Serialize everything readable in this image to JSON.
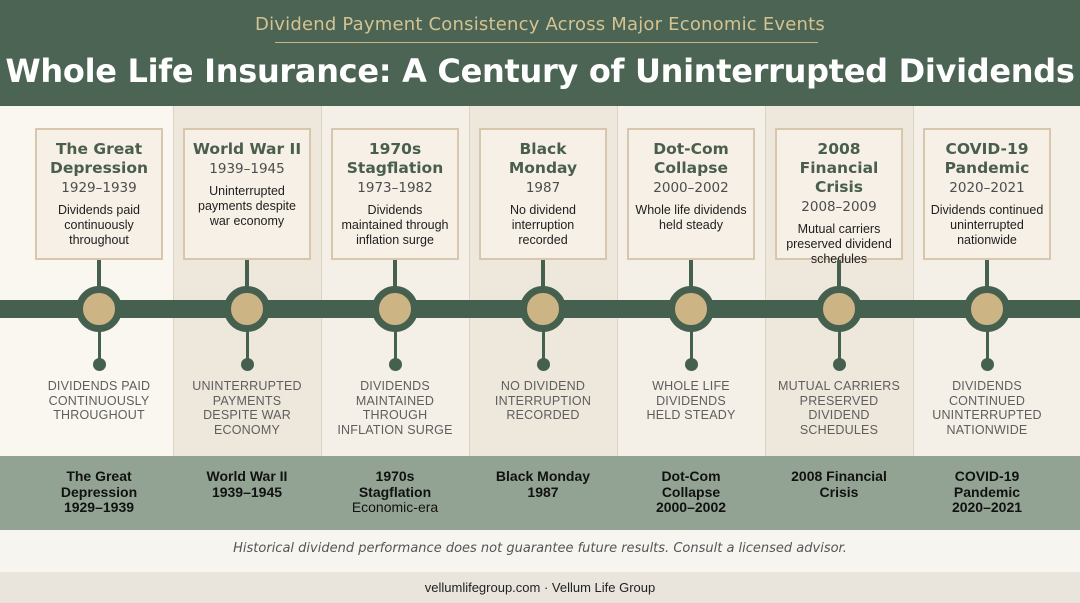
{
  "header": {
    "subtitle": "Dividend Payment Consistency Across Major Economic Events",
    "title": "Whole Life Insurance: A Century of Uninterrupted Dividends"
  },
  "events": [
    {
      "name_line1": "The Great",
      "name_line2": "Depression",
      "years": "1929–1939",
      "desc_lines": [
        "Dividends paid",
        "continuously",
        "throughout"
      ],
      "caption_lines": [
        "DIVIDENDS PAID",
        "CONTINUOUSLY",
        "THROUGHOUT"
      ],
      "band_lines": [
        "The Great",
        "Depression",
        "1929–1939"
      ]
    },
    {
      "name_line1": "World War II",
      "name_line2": "",
      "years": "1939–1945",
      "desc_lines": [
        "Uninterrupted",
        "payments despite",
        "war economy"
      ],
      "caption_lines": [
        "UNINTERRUPTED",
        "PAYMENTS",
        "DESPITE WAR",
        "ECONOMY"
      ],
      "band_lines": [
        "World War II",
        "1939–1945"
      ]
    },
    {
      "name_line1": "1970s",
      "name_line2": "Stagflation",
      "years": "1973–1982",
      "desc_lines": [
        "Dividends",
        "maintained through",
        "inflation surge"
      ],
      "caption_lines": [
        "DIVIDENDS",
        "MAINTAINED",
        "THROUGH",
        "INFLATION SURGE"
      ],
      "band_lines": [
        "1970s",
        "Stagflation",
        "Economic-era"
      ]
    },
    {
      "name_line1": "Black",
      "name_line2": "Monday",
      "years": "1987",
      "desc_lines": [
        "No dividend",
        "interruption",
        "recorded"
      ],
      "caption_lines": [
        "NO DIVIDEND",
        "INTERRUPTION",
        "RECORDED"
      ],
      "band_lines": [
        "Black Monday",
        "1987"
      ]
    },
    {
      "name_line1": "Dot-Com",
      "name_line2": "Collapse",
      "years": "2000–2002",
      "desc_lines": [
        "Whole life dividends",
        "held steady"
      ],
      "caption_lines": [
        "WHOLE LIFE",
        "DIVIDENDS",
        "HELD STEADY"
      ],
      "band_lines": [
        "Dot-Com",
        "Collapse",
        "2000–2002"
      ]
    },
    {
      "name_line1": "2008",
      "name_line2": "Financial Crisis",
      "years": "2008–2009",
      "desc_lines": [
        "Mutual carriers",
        "preserved dividend",
        "schedules"
      ],
      "caption_lines": [
        "MUTUAL CARRIERS",
        "PRESERVED",
        "DIVIDEND",
        "SCHEDULES"
      ],
      "band_lines": [
        "2008 Financial",
        "Crisis"
      ]
    },
    {
      "name_line1": "COVID-19",
      "name_line2": "Pandemic",
      "years": "2020–2021",
      "desc_lines": [
        "Dividends continued",
        "uninterrupted",
        "nationwide"
      ],
      "caption_lines": [
        "DIVIDENDS",
        "CONTINUED",
        "UNINTERRUPTED",
        "NATIONWIDE"
      ],
      "band_lines": [
        "COVID-19",
        "Pandemic",
        "2020–2021"
      ]
    }
  ],
  "disclaimer": "Historical dividend performance does not guarantee future results. Consult a licensed advisor.",
  "footer": "vellumlifegroup.com · Vellum Life Group",
  "colors": {
    "header_green": "#4b6454",
    "accent_gold": "#cdb485",
    "band_sage": "#93a393"
  }
}
